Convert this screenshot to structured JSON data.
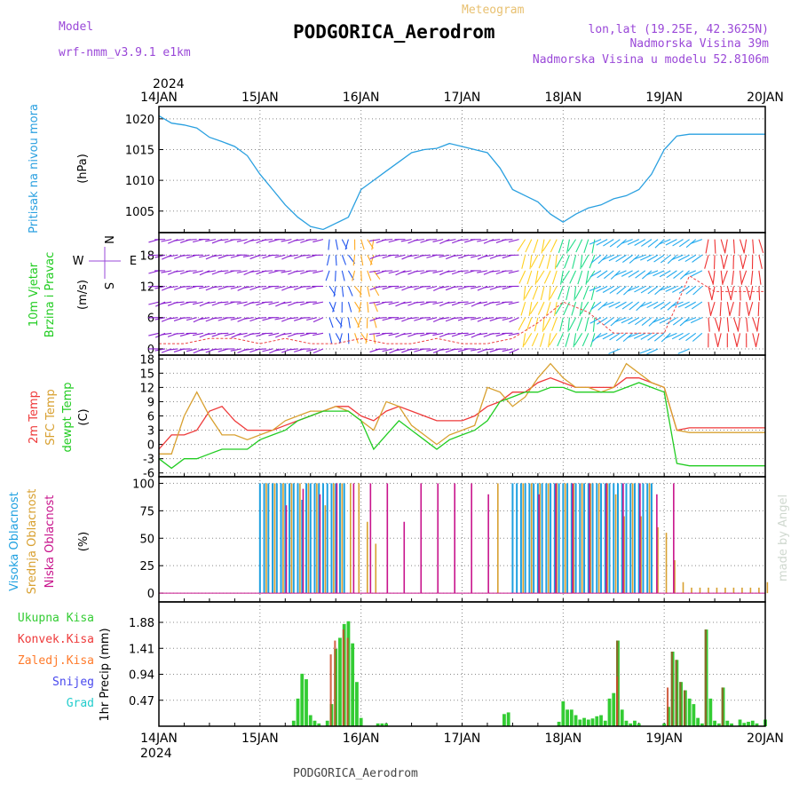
{
  "header": {
    "model_label": "Model",
    "model_name": "wrf-nmm_v3.9.1 e1km",
    "product": "Meteogram",
    "station": "PODGORICA_Aerodrom",
    "lonlat": "lon,lat (19.25E, 42.3625N)",
    "elevation": "Nadmorska Visina 39m",
    "model_elevation": "Nadmorska Visina u modelu 52.8106m",
    "year_top": "2024",
    "year_bottom": "2024",
    "footer_station": "PODGORICA_Aerodrom",
    "credit": "made by Angel"
  },
  "colors": {
    "pressure": "#2aa0e0",
    "t2m": "#ee3a3a",
    "sfc": "#d8a030",
    "dewpt": "#22cc22",
    "high_cloud": "#1ea0e0",
    "mid_cloud": "#d8a030",
    "low_cloud": "#c8148c",
    "total_precip": "#33cc33",
    "conv_precip": "#ee3a3a",
    "frozen": "#ff7a2a",
    "snow": "#4848ee",
    "graupel": "#22cccc",
    "wind_label": "#22cc22",
    "model_text": "#9a48d8"
  },
  "days": [
    "14JAN",
    "15JAN",
    "16JAN",
    "17JAN",
    "18JAN",
    "19JAN",
    "20JAN"
  ],
  "panels": {
    "pressure": {
      "ylabel_1": "Pritisak na nivou mora",
      "unit": "(hPa)",
      "ticks": [
        "1005",
        "1010",
        "1015",
        "1020"
      ]
    },
    "wind": {
      "ylabel_1": "10m Vjetar",
      "ylabel_2": "Brzina i Pravac",
      "unit": "(m/s)",
      "ticks": [
        "0",
        "6",
        "12",
        "18"
      ],
      "compass_n": "N",
      "compass_s": "S",
      "compass_w": "W",
      "compass_e": "E"
    },
    "temp": {
      "ylabel_1": "2m Temp",
      "ylabel_2": "SFC Temp",
      "ylabel_3": "dewpt Temp",
      "unit": "(C)",
      "ticks": [
        "-6",
        "-3",
        "0",
        "3",
        "6",
        "9",
        "12",
        "15",
        "18"
      ]
    },
    "cloud": {
      "ylabel_1": "Visoka Oblacnost",
      "ylabel_2": "Srednja Oblacnost",
      "ylabel_3": "Niska Oblacnost",
      "unit": "(%)",
      "ticks": [
        "0",
        "25",
        "50",
        "75",
        "100"
      ]
    },
    "precip": {
      "legend": [
        "Ukupna Kisa",
        "Konvek.Kisa",
        "Zaledj.Kisa",
        "Snijeg",
        "Grad"
      ],
      "unit": "1hr Precip (mm)",
      "ticks": [
        "0.47",
        "0.94",
        "1.41",
        "1.88"
      ]
    }
  },
  "chart_data": [
    {
      "type": "line",
      "title": "",
      "ylabel": "Pritisak na nivou mora (hPa)",
      "x_unit": "hours from 14JAN 00",
      "ylim": [
        1001.5,
        1022
      ],
      "series": [
        {
          "name": "Pritisak na nivou mora",
          "x": [
            0,
            3,
            6,
            9,
            12,
            15,
            18,
            21,
            24,
            27,
            30,
            33,
            36,
            39,
            42,
            45,
            48,
            51,
            54,
            57,
            60,
            63,
            66,
            69,
            72,
            75,
            78,
            81,
            84,
            87,
            90,
            93,
            96,
            99,
            102,
            105,
            108,
            111,
            114,
            117,
            120,
            123,
            126,
            129,
            132,
            135,
            138,
            141,
            144
          ],
          "values": [
            1020.5,
            1019.3,
            1019,
            1018.5,
            1017,
            1016.3,
            1015.5,
            1014,
            1011,
            1008.5,
            1006,
            1004,
            1002.5,
            1002,
            1003,
            1004,
            1008.5,
            1010,
            1011.5,
            1013,
            1014.5,
            1015,
            1015.2,
            1016,
            1015.5,
            1015,
            1014.5,
            1012,
            1008.5,
            1007.5,
            1006.5,
            1004.5,
            1003.2,
            1004.5,
            1005.5,
            1006,
            1007,
            1007.5,
            1008.5,
            1011,
            1015,
            1017.2,
            1017.5,
            1017.5,
            1017.5,
            1017.5,
            1017.5,
            1017.5,
            1017.5
          ]
        }
      ]
    },
    {
      "type": "line",
      "title": "",
      "ylabel": "Temp (C)",
      "x_unit": "hours from 14JAN 00",
      "ylim": [
        -6,
        18
      ],
      "series": [
        {
          "name": "2m Temp",
          "x": [
            0,
            3,
            6,
            9,
            12,
            15,
            18,
            21,
            24,
            27,
            30,
            33,
            36,
            39,
            42,
            45,
            48,
            51,
            54,
            57,
            60,
            63,
            66,
            69,
            72,
            75,
            78,
            81,
            84,
            87,
            90,
            93,
            96,
            99,
            102,
            105,
            108,
            111,
            114,
            117,
            120,
            123,
            126,
            129,
            132,
            135,
            138,
            141,
            144
          ],
          "values": [
            -1,
            2,
            2,
            3,
            7,
            8,
            5,
            3,
            3,
            3,
            4,
            5,
            6,
            7,
            8,
            8,
            6,
            5,
            7,
            8,
            7,
            6,
            5,
            5,
            5,
            6,
            8,
            9,
            11,
            11,
            13,
            14,
            13,
            12,
            12,
            12,
            12,
            14,
            14,
            13,
            12,
            3,
            3.5,
            3.5,
            3.5,
            3.5,
            3.5,
            3.5,
            3.5
          ]
        },
        {
          "name": "SFC Temp",
          "x": [
            0,
            3,
            6,
            9,
            12,
            15,
            18,
            21,
            24,
            27,
            30,
            33,
            36,
            39,
            42,
            45,
            48,
            51,
            54,
            57,
            60,
            63,
            66,
            69,
            72,
            75,
            78,
            81,
            84,
            87,
            90,
            93,
            96,
            99,
            102,
            105,
            108,
            111,
            114,
            117,
            120,
            123,
            126,
            129,
            132,
            135,
            138,
            141,
            144
          ],
          "values": [
            -2,
            -2,
            6,
            11,
            6,
            2,
            2,
            1,
            2,
            3,
            5,
            6,
            7,
            7,
            8,
            7,
            5,
            3,
            9,
            8,
            4,
            2,
            0,
            2,
            3,
            4,
            12,
            11,
            8,
            10,
            14,
            17,
            14,
            12,
            12,
            11,
            12,
            17,
            15,
            13,
            12,
            3,
            2.5,
            2.5,
            2.5,
            2.5,
            2.5,
            2.5,
            2.5
          ]
        },
        {
          "name": "dewpt Temp",
          "x": [
            0,
            3,
            6,
            9,
            12,
            15,
            18,
            21,
            24,
            27,
            30,
            33,
            36,
            39,
            42,
            45,
            48,
            51,
            54,
            57,
            60,
            63,
            66,
            69,
            72,
            75,
            78,
            81,
            84,
            87,
            90,
            93,
            96,
            99,
            102,
            105,
            108,
            111,
            114,
            117,
            120,
            123,
            126,
            129,
            132,
            135,
            138,
            141,
            144
          ],
          "values": [
            -3,
            -5,
            -3,
            -3,
            -2,
            -1,
            -1,
            -1,
            1,
            2,
            3,
            5,
            6,
            7,
            7,
            7,
            5,
            -1,
            2,
            5,
            3,
            1,
            -1,
            1,
            2,
            3,
            5,
            9,
            10,
            11,
            11,
            12,
            12,
            11,
            11,
            11,
            11,
            12,
            13,
            12,
            11,
            -4,
            -4.5,
            -4.5,
            -4.5,
            -4.5,
            -4.5,
            -4.5,
            -4.5
          ]
        }
      ]
    },
    {
      "type": "line",
      "title": "",
      "ylabel": "10m Vjetar Brzina (m/s)",
      "x_unit": "hours from 14JAN 00",
      "ylim": [
        0,
        22
      ],
      "series": [
        {
          "name": "10m Vjetar",
          "x": [
            0,
            6,
            12,
            18,
            24,
            30,
            36,
            42,
            48,
            54,
            60,
            66,
            72,
            78,
            84,
            90,
            96,
            102,
            108,
            114,
            120,
            126,
            132,
            138,
            144
          ],
          "values": [
            1,
            1,
            2,
            2,
            1,
            2,
            1,
            1,
            2,
            1,
            1,
            2,
            1,
            1,
            2,
            5,
            9,
            7,
            3,
            3,
            3,
            14,
            11,
            11,
            11
          ]
        }
      ]
    },
    {
      "type": "bar",
      "title": "",
      "ylabel": "Oblacnost (%)",
      "x_unit": "hours from 14JAN 00",
      "ylim": [
        0,
        100
      ],
      "series": [
        {
          "name": "Visoka Oblacnost",
          "x": [
            24,
            25,
            26,
            27,
            28,
            29,
            30,
            31,
            32,
            33,
            34,
            35,
            36,
            37,
            38,
            39,
            40,
            41,
            42,
            43,
            44,
            45,
            46,
            47,
            48,
            49,
            84,
            85,
            86,
            87,
            88,
            89,
            90,
            91,
            92,
            93,
            94,
            95,
            96,
            97,
            98,
            99,
            100,
            101,
            102,
            103,
            104,
            105,
            106,
            107,
            108,
            109,
            110,
            111,
            112,
            113,
            114,
            115,
            116,
            117
          ],
          "values": [
            100,
            100,
            100,
            100,
            100,
            100,
            100,
            100,
            100,
            100,
            85,
            100,
            100,
            100,
            100,
            100,
            100,
            100,
            100,
            100,
            100,
            0,
            0,
            0,
            0,
            0,
            100,
            100,
            100,
            100,
            100,
            100,
            100,
            100,
            100,
            100,
            100,
            100,
            100,
            100,
            100,
            100,
            100,
            100,
            100,
            100,
            100,
            100,
            100,
            100,
            100,
            100,
            100,
            100,
            100,
            100,
            100,
            100,
            100,
            100
          ]
        },
        {
          "name": "Srednja Oblacnost",
          "x": [
            25,
            27,
            29,
            31,
            33,
            35,
            37,
            39,
            41,
            43,
            45,
            47,
            49,
            51,
            80,
            86,
            88,
            90,
            92,
            94,
            96,
            98,
            100,
            102,
            104,
            106,
            108,
            110,
            112,
            114,
            116,
            118,
            120,
            122,
            124,
            126,
            128,
            130,
            132,
            134,
            136,
            138,
            140,
            142,
            144
          ],
          "values": [
            100,
            100,
            100,
            100,
            100,
            100,
            100,
            80,
            100,
            100,
            100,
            100,
            65,
            45,
            100,
            100,
            100,
            100,
            100,
            100,
            100,
            100,
            100,
            100,
            100,
            100,
            90,
            70,
            100,
            70,
            100,
            60,
            55,
            30,
            10,
            5,
            5,
            5,
            5,
            5,
            5,
            5,
            5,
            5,
            10
          ]
        },
        {
          "name": "Niska Oblacnost",
          "x": [
            30,
            34,
            38,
            42,
            46,
            50,
            54,
            58,
            62,
            66,
            70,
            74,
            78,
            82,
            86,
            90,
            94,
            98,
            102,
            106,
            110,
            114,
            118,
            122
          ],
          "values": [
            80,
            95,
            90,
            100,
            100,
            100,
            100,
            65,
            100,
            100,
            100,
            100,
            90,
            0,
            0,
            90,
            100,
            100,
            100,
            100,
            100,
            100,
            90,
            100
          ]
        }
      ]
    },
    {
      "type": "bar",
      "title": "",
      "ylabel": "1hr Precip (mm)",
      "x_unit": "hours from 14JAN 00",
      "ylim": [
        0,
        2.25
      ],
      "series": [
        {
          "name": "Ukupna Kisa",
          "x": [
            32,
            33,
            34,
            35,
            36,
            37,
            38,
            39,
            40,
            41,
            42,
            43,
            44,
            45,
            46,
            47,
            48,
            49,
            50,
            51,
            52,
            53,
            54,
            55,
            56,
            57,
            58,
            59,
            60,
            61,
            62,
            63,
            64,
            65,
            66,
            67,
            68,
            69,
            70,
            71,
            72,
            73,
            74,
            75,
            76,
            77,
            78,
            79,
            80,
            81,
            82,
            83,
            84,
            85,
            86,
            87,
            88,
            89,
            90,
            91,
            92,
            93,
            94,
            95,
            96,
            97,
            98,
            99,
            100,
            101,
            102,
            103,
            104,
            105,
            106,
            107,
            108,
            109,
            110,
            111,
            112,
            113,
            114,
            115,
            116,
            117,
            118,
            119,
            120,
            121,
            122,
            123,
            124,
            125,
            126,
            127,
            128,
            129,
            130,
            131,
            132,
            133,
            134,
            135,
            136,
            137,
            138,
            139,
            140,
            141,
            142,
            143
          ],
          "values": [
            0.1,
            0.5,
            0.95,
            0.85,
            0.2,
            0.1,
            0.05,
            0,
            0.1,
            0.4,
            1.4,
            1.6,
            1.85,
            1.9,
            1.5,
            0.8,
            0.15,
            0,
            0,
            0,
            0.05,
            0.05,
            0.05,
            0,
            0,
            0,
            0,
            0,
            0,
            0,
            0,
            0,
            0,
            0,
            0,
            0,
            0,
            0,
            0,
            0,
            0,
            0,
            0,
            0,
            0,
            0,
            0,
            0,
            0,
            0,
            0,
            0,
            0,
            0,
            0,
            0,
            0,
            0,
            0,
            0,
            0,
            0,
            0,
            0,
            0,
            0,
            0,
            0,
            0,
            0,
            0,
            0,
            0,
            0,
            0,
            0,
            0,
            0,
            0,
            0,
            0,
            0,
            0,
            0,
            0,
            0,
            0,
            0,
            0,
            0,
            0,
            0,
            0,
            0,
            0,
            0,
            0,
            0,
            0,
            0,
            0,
            0,
            0,
            0,
            0,
            0,
            0,
            0,
            0,
            0,
            0,
            0
          ]
        },
        {
          "name": "Konvek.Kisa",
          "x": [],
          "values": []
        }
      ]
    }
  ]
}
